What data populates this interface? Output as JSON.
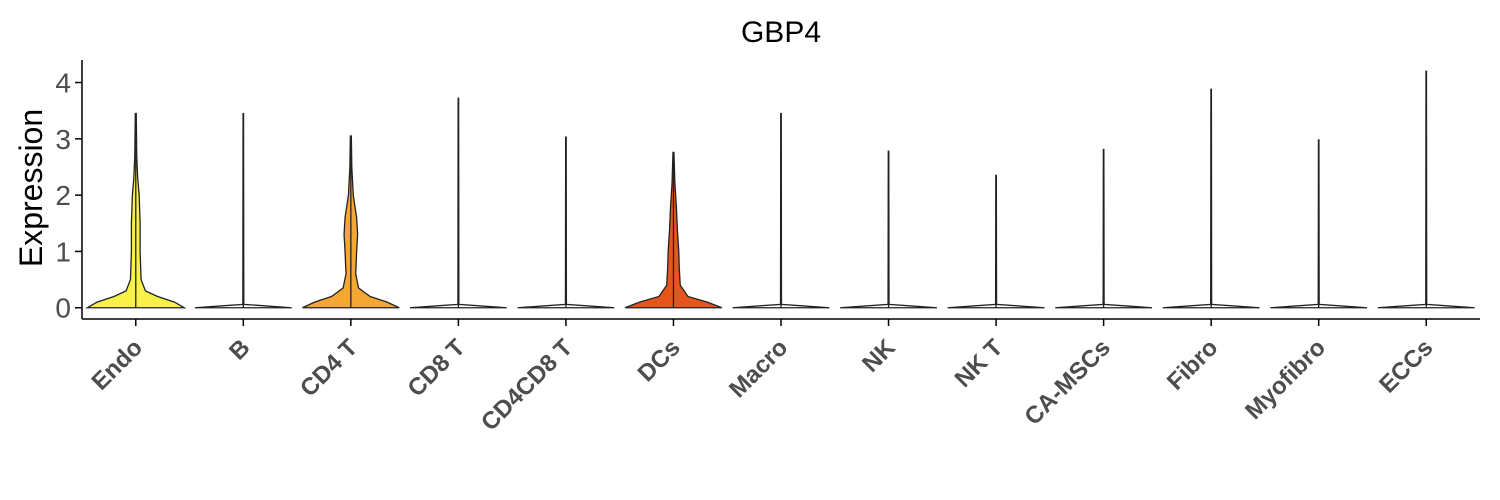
{
  "chart_data": {
    "type": "violin",
    "title": "GBP4",
    "xlabel": "",
    "ylabel": "Expression",
    "ylim": [
      -0.2,
      4.4
    ],
    "yticks": [
      0,
      1,
      2,
      3,
      4
    ],
    "grid": false,
    "legend": "none",
    "categories": [
      "Endo",
      "B",
      "CD4 T",
      "CD8 T",
      "CD4CD8 T",
      "DCs",
      "Macro",
      "NK",
      "NK T",
      "CA-MSCs",
      "Fibro",
      "Myofibro",
      "ECCs"
    ],
    "max_values": [
      3.45,
      3.45,
      3.05,
      3.72,
      3.03,
      2.76,
      3.45,
      2.78,
      2.35,
      2.81,
      3.88,
      2.98,
      4.2
    ],
    "colors": [
      "#f9f14a",
      "#ffffff",
      "#f4a733",
      "#ffffff",
      "#ffffff",
      "#e6561c",
      "#ffffff",
      "#ffffff",
      "#ffffff",
      "#ffffff",
      "#ffffff",
      "#ffffff",
      "#ffffff"
    ],
    "density_profiles": [
      [
        [
          0,
          1.0
        ],
        [
          0.1,
          0.8
        ],
        [
          0.2,
          0.45
        ],
        [
          0.3,
          0.2
        ],
        [
          0.5,
          0.11
        ],
        [
          1.0,
          0.09
        ],
        [
          1.5,
          0.09
        ],
        [
          2.0,
          0.07
        ],
        [
          2.3,
          0.04
        ],
        [
          2.7,
          0.02
        ],
        [
          3.45,
          0.01
        ]
      ],
      [
        [
          0,
          1.0
        ],
        [
          0.03,
          0.5
        ],
        [
          0.06,
          0.01
        ],
        [
          3.45,
          0.005
        ]
      ],
      [
        [
          0,
          1.0
        ],
        [
          0.1,
          0.75
        ],
        [
          0.2,
          0.4
        ],
        [
          0.35,
          0.16
        ],
        [
          0.6,
          0.1
        ],
        [
          1.0,
          0.12
        ],
        [
          1.3,
          0.14
        ],
        [
          1.6,
          0.12
        ],
        [
          2.0,
          0.05
        ],
        [
          2.5,
          0.02
        ],
        [
          3.05,
          0.01
        ]
      ],
      [
        [
          0,
          1.0
        ],
        [
          0.03,
          0.5
        ],
        [
          0.06,
          0.01
        ],
        [
          3.72,
          0.005
        ]
      ],
      [
        [
          0,
          1.0
        ],
        [
          0.03,
          0.5
        ],
        [
          0.06,
          0.01
        ],
        [
          3.03,
          0.005
        ]
      ],
      [
        [
          0,
          1.0
        ],
        [
          0.1,
          0.7
        ],
        [
          0.2,
          0.3
        ],
        [
          0.4,
          0.14
        ],
        [
          0.7,
          0.12
        ],
        [
          1.0,
          0.11
        ],
        [
          1.4,
          0.08
        ],
        [
          1.8,
          0.06
        ],
        [
          2.2,
          0.03
        ],
        [
          2.76,
          0.01
        ]
      ],
      [
        [
          0,
          1.0
        ],
        [
          0.03,
          0.5
        ],
        [
          0.06,
          0.01
        ],
        [
          3.45,
          0.005
        ]
      ],
      [
        [
          0,
          1.0
        ],
        [
          0.03,
          0.5
        ],
        [
          0.06,
          0.01
        ],
        [
          2.78,
          0.005
        ]
      ],
      [
        [
          0,
          1.0
        ],
        [
          0.03,
          0.5
        ],
        [
          0.06,
          0.01
        ],
        [
          2.35,
          0.005
        ]
      ],
      [
        [
          0,
          1.0
        ],
        [
          0.03,
          0.5
        ],
        [
          0.06,
          0.01
        ],
        [
          2.81,
          0.005
        ]
      ],
      [
        [
          0,
          1.0
        ],
        [
          0.03,
          0.5
        ],
        [
          0.06,
          0.01
        ],
        [
          3.88,
          0.005
        ]
      ],
      [
        [
          0,
          1.0
        ],
        [
          0.03,
          0.5
        ],
        [
          0.06,
          0.01
        ],
        [
          2.98,
          0.005
        ]
      ],
      [
        [
          0,
          1.0
        ],
        [
          0.03,
          0.5
        ],
        [
          0.06,
          0.01
        ],
        [
          4.2,
          0.005
        ]
      ]
    ]
  }
}
